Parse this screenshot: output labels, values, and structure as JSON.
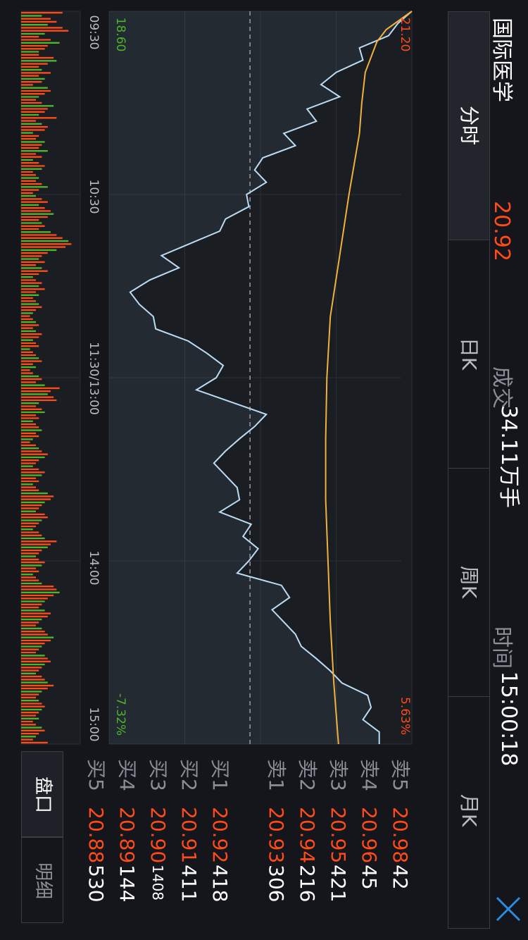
{
  "header": {
    "stock_name": "国际医学",
    "price": "20.92",
    "volume_label": "成交",
    "volume_value": "34.11万手",
    "time_label": "时间",
    "time_value": "15:00:18"
  },
  "tabs": [
    {
      "label": "分时",
      "active": true
    },
    {
      "label": "日K",
      "active": false
    },
    {
      "label": "周K",
      "active": false
    },
    {
      "label": "月K",
      "active": false
    }
  ],
  "order_book": {
    "sell": [
      {
        "label": "卖5",
        "price": "20.98",
        "volume": "42"
      },
      {
        "label": "卖4",
        "price": "20.96",
        "volume": "45"
      },
      {
        "label": "卖3",
        "price": "20.95",
        "volume": "421"
      },
      {
        "label": "卖2",
        "price": "20.94",
        "volume": "216"
      },
      {
        "label": "卖1",
        "price": "20.93",
        "volume": "306"
      }
    ],
    "buy": [
      {
        "label": "买1",
        "price": "20.92",
        "volume": "418"
      },
      {
        "label": "买2",
        "price": "20.91",
        "volume": "411"
      },
      {
        "label": "买3",
        "price": "20.90",
        "volume": "1408"
      },
      {
        "label": "买4",
        "price": "20.89",
        "volume": "144"
      },
      {
        "label": "买5",
        "price": "20.88",
        "volume": "530"
      }
    ]
  },
  "side_tabs": [
    {
      "label": "盘口",
      "active": true
    },
    {
      "label": "明细",
      "active": false
    }
  ],
  "colors": {
    "up": "#ff4a1a",
    "down": "#4cb52a",
    "price_line": "#bcdcf5",
    "avg_line": "#f2b13d",
    "ref_line": "#9a9da3"
  },
  "chart_data": {
    "type": "line",
    "ylim": [
      18.6,
      21.2
    ],
    "y_tick_labels": {
      "top": "21.20",
      "bottom": "18.60",
      "top_pct": "5.63%",
      "bottom_pct": "-7.32%"
    },
    "reference_price": 19.81,
    "x_tick_labels": [
      "09:30",
      "10:30",
      "11:30/13:00",
      "14:00",
      "15:00"
    ],
    "price": {
      "x": [
        0,
        4,
        8,
        12,
        16,
        20,
        24,
        28,
        32,
        36,
        40,
        44,
        48,
        52,
        56,
        60,
        64,
        68,
        72,
        76,
        80,
        84,
        88,
        92,
        96,
        100,
        104,
        108,
        112,
        116,
        120,
        124,
        128,
        132,
        136,
        140,
        144,
        148,
        152,
        156,
        160,
        164,
        168,
        172,
        176,
        180,
        184,
        188,
        192,
        196,
        200,
        204,
        208,
        212,
        216,
        220,
        224,
        228,
        232,
        236,
        240
      ],
      "y": [
        21.2,
        21.08,
        21.0,
        20.75,
        20.78,
        20.55,
        20.42,
        20.58,
        20.3,
        20.38,
        20.1,
        20.2,
        19.92,
        19.85,
        19.95,
        19.78,
        19.8,
        19.6,
        19.55,
        19.3,
        19.05,
        19.2,
        18.95,
        18.78,
        18.86,
        18.98,
        19.0,
        19.28,
        19.44,
        19.58,
        19.52,
        19.35,
        19.65,
        19.95,
        19.85,
        19.72,
        19.6,
        19.5,
        19.6,
        19.7,
        19.72,
        19.55,
        19.82,
        19.75,
        19.88,
        19.8,
        19.7,
        20.08,
        20.15,
        20.0,
        20.1,
        20.2,
        20.25,
        20.38,
        20.5,
        20.6,
        20.82,
        20.85,
        20.78,
        20.92,
        20.92
      ]
    },
    "avg_price": {
      "x": [
        0,
        6,
        10,
        20,
        30,
        40,
        60,
        80,
        100,
        120,
        140,
        160,
        180,
        200,
        220,
        240
      ],
      "y": [
        21.2,
        20.98,
        20.9,
        20.8,
        20.77,
        20.75,
        20.66,
        20.58,
        20.5,
        20.47,
        20.46,
        20.46,
        20.48,
        20.5,
        20.53,
        20.57
      ]
    },
    "volume_ylim": [
      0,
      100
    ],
    "volume": {
      "values": [
        70,
        35,
        50,
        60,
        45,
        70,
        80,
        40,
        30,
        50,
        65,
        45,
        40,
        30,
        30,
        55,
        60,
        45,
        30,
        35,
        50,
        30,
        40,
        35,
        20,
        45,
        50,
        40,
        30,
        25,
        35,
        55,
        45,
        40,
        30,
        60,
        25,
        35,
        45,
        40,
        20,
        30,
        25,
        40,
        35,
        30,
        45,
        25,
        35,
        20,
        30,
        40,
        35,
        20,
        25,
        30,
        25,
        35,
        45,
        30,
        20,
        25,
        35,
        45,
        30,
        40,
        50,
        55,
        45,
        30,
        35,
        40,
        30,
        50,
        60,
        70,
        80,
        85,
        75,
        60,
        45,
        35,
        30,
        40,
        25,
        35,
        45,
        30,
        20,
        25,
        35,
        30,
        40,
        25,
        30,
        20,
        25,
        30,
        35,
        25,
        20,
        15,
        20,
        25,
        30,
        20,
        25,
        35,
        30,
        20,
        25,
        30,
        15,
        20,
        25,
        30,
        35,
        20,
        25,
        15,
        20,
        30,
        35,
        25,
        40,
        65,
        50,
        45,
        55,
        60,
        30,
        25,
        35,
        40,
        25,
        30,
        20,
        25,
        30,
        35,
        25,
        30,
        20,
        15,
        25,
        30,
        35,
        45,
        40,
        30,
        25,
        20,
        30,
        40,
        35,
        25,
        30,
        20,
        25,
        30,
        45,
        55,
        50,
        40,
        35,
        30,
        25,
        40,
        45,
        35,
        30,
        25,
        20,
        30,
        35,
        40,
        60,
        50,
        45,
        35,
        30,
        25,
        30,
        40,
        35,
        25,
        30,
        20,
        25,
        30,
        35,
        55,
        60,
        65,
        55,
        45,
        40,
        35,
        30,
        40,
        50,
        45,
        35,
        30,
        25,
        35,
        40,
        45,
        55,
        50,
        40,
        35,
        30,
        25,
        40,
        45,
        50,
        40,
        35,
        30,
        25,
        35,
        40,
        45,
        55,
        45,
        35,
        30,
        25,
        30,
        35,
        40,
        35,
        30,
        25,
        30,
        20,
        25,
        35,
        40,
        30,
        25,
        20,
        45
      ]
    }
  }
}
